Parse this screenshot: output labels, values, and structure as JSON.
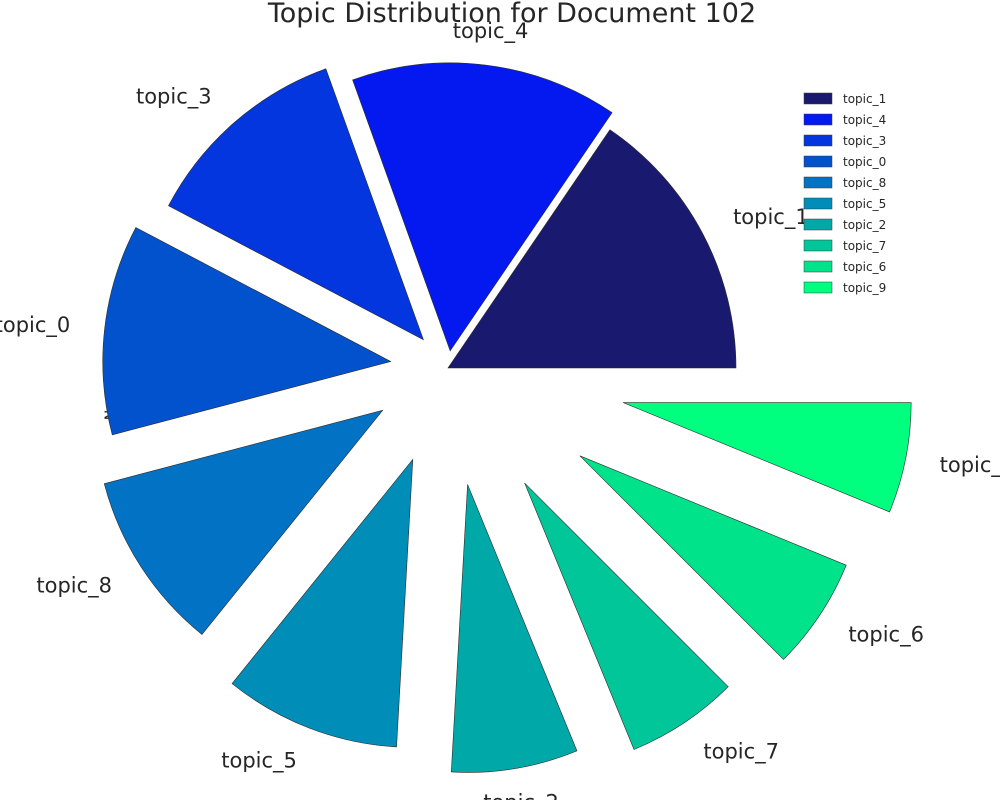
{
  "chart_data": {
    "type": "pie",
    "title": "Topic Distribution for Document 102",
    "ylabel": "None",
    "legend_position": "top-right",
    "slices": [
      {
        "label": "topic_1",
        "value": 0.155,
        "color": "#191970"
      },
      {
        "label": "topic_4",
        "value": 0.15,
        "color": "#0419ef"
      },
      {
        "label": "topic_3",
        "value": 0.118,
        "color": "#0336de"
      },
      {
        "label": "topic_0",
        "value": 0.118,
        "color": "#0251cd"
      },
      {
        "label": "topic_8",
        "value": 0.101,
        "color": "#0172c4"
      },
      {
        "label": "topic_5",
        "value": 0.099,
        "color": "#008db8"
      },
      {
        "label": "topic_2",
        "value": 0.071,
        "color": "#00a9a8"
      },
      {
        "label": "topic_7",
        "value": 0.063,
        "color": "#00c69a"
      },
      {
        "label": "topic_6",
        "value": 0.063,
        "color": "#00e38a"
      },
      {
        "label": "topic_9",
        "value": 0.062,
        "color": "#00fe7f"
      }
    ]
  }
}
